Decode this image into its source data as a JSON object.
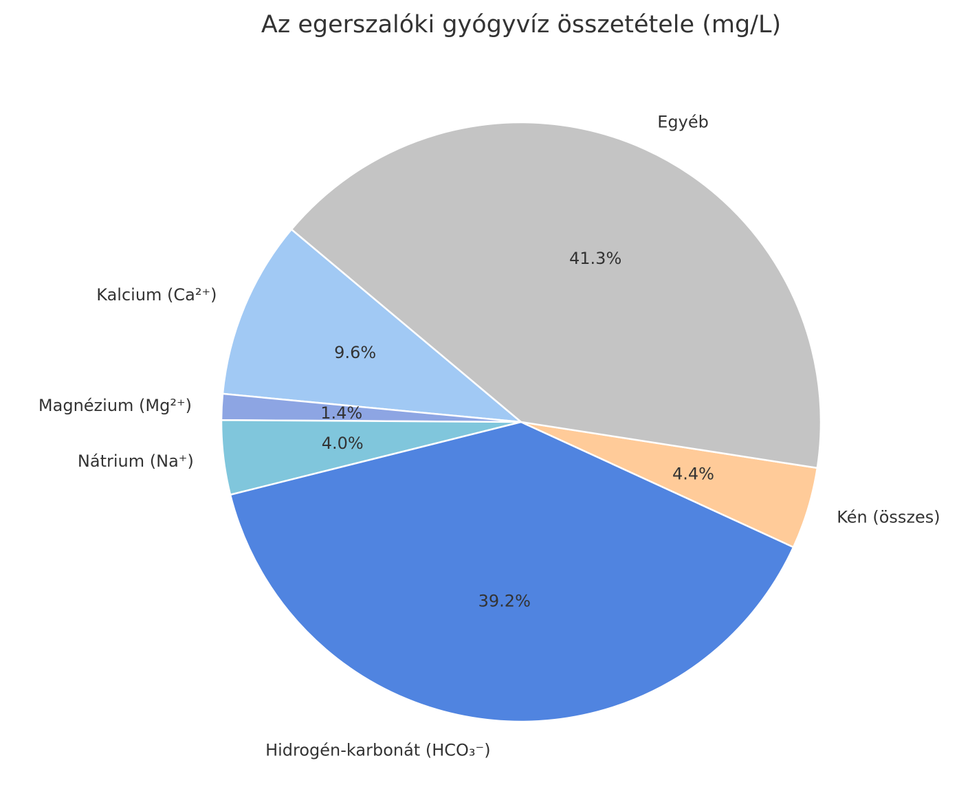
{
  "chart_data": {
    "type": "pie",
    "title": "Az egerszalóki gyógyvíz összetétele (mg/L)",
    "start_angle_deg": 140,
    "direction": "counterclockwise",
    "slices": [
      {
        "label": "Kalcium (Ca²⁺)",
        "percent": 9.6,
        "pct_label": "9.6%",
        "color": "#a1c9f4"
      },
      {
        "label": "Magnézium (Mg²⁺)",
        "percent": 1.4,
        "pct_label": "1.4%",
        "color": "#8da5e3"
      },
      {
        "label": "Nátrium (Na⁺)",
        "percent": 4.0,
        "pct_label": "4.0%",
        "color": "#80c6dc"
      },
      {
        "label": "Hidrogén-karbonát (HCO₃⁻)",
        "percent": 39.2,
        "pct_label": "39.2%",
        "color": "#5084e0"
      },
      {
        "label": "Kén (összes)",
        "percent": 4.4,
        "pct_label": "4.4%",
        "color": "#ffcb99"
      },
      {
        "label": "Egyéb",
        "percent": 41.3,
        "pct_label": "41.3%",
        "color": "#c4c4c4"
      }
    ],
    "categories": [
      "Kalcium (Ca²⁺)",
      "Magnézium (Mg²⁺)",
      "Nátrium (Na⁺)",
      "Hidrogén-karbonát (HCO₃⁻)",
      "Kén (összes)",
      "Egyéb"
    ],
    "values": [
      9.6,
      1.4,
      4.0,
      39.2,
      4.4,
      41.3
    ],
    "legend": "none"
  }
}
